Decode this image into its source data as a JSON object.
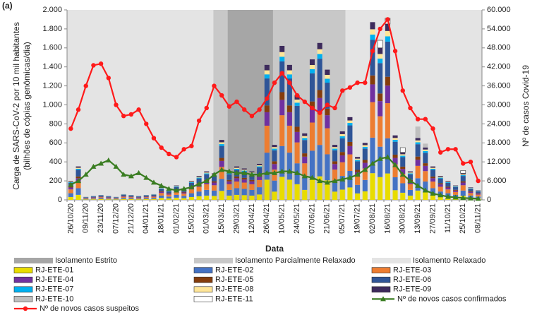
{
  "chart_data": {
    "type": "bar",
    "panel_label": "(a)",
    "ylabel": [
      "Carga de SARS-CoV-2 por 10 mil habitantes",
      "(bilhões de cópias genômicas/dia)"
    ],
    "y2label": "Nº de casos Covid-19",
    "xlabel": "Data",
    "categories": [
      "26/10/20",
      null,
      "09/11/20",
      null,
      "23/11/20",
      null,
      "07/12/20",
      null,
      "21/12/20",
      null,
      "04/01/21",
      null,
      "18/01/21",
      null,
      "01/02/21",
      null,
      "15/02/21",
      null,
      "01/03/21",
      null,
      "15/03/21",
      null,
      "29/03/21",
      null,
      "12/04/21",
      null,
      "26/04/21",
      null,
      "10/05/21",
      null,
      "24/05/21",
      null,
      "07/06/21",
      null,
      "21/06/21",
      null,
      "05/07/21",
      null,
      "19/07/21",
      null,
      "02/08/21",
      null,
      "16/08/21",
      null,
      "30/08/21",
      null,
      "13/09/21",
      null,
      "27/09/21",
      null,
      "11/10/21",
      null,
      "25/10/21",
      null,
      "08/11/21"
    ],
    "ylim": [
      0,
      2000
    ],
    "yticks": [
      0,
      200,
      400,
      600,
      800,
      {
        "value": 1000,
        "label": "1.000"
      },
      {
        "value": 1200,
        "label": "1.200"
      },
      {
        "value": 1400,
        "label": "1.400"
      },
      {
        "value": 1600,
        "label": "1.600"
      },
      {
        "value": 1800,
        "label": "1.800"
      },
      {
        "value": 2000,
        "label": "2.000"
      }
    ],
    "y2lim": [
      0,
      60000
    ],
    "y2ticks": [
      0,
      {
        "value": 6000,
        "label": "6.000"
      },
      {
        "value": 12000,
        "label": "12.000"
      },
      {
        "value": 18000,
        "label": "18.000"
      },
      {
        "value": 24000,
        "label": "24.000"
      },
      {
        "value": 30000,
        "label": "30.000"
      },
      {
        "value": 36000,
        "label": "36.000"
      },
      {
        "value": 42000,
        "label": "42.000"
      },
      {
        "value": 48000,
        "label": "48.000"
      },
      {
        "value": 54000,
        "label": "54.000"
      },
      {
        "value": 60000,
        "label": "60.000"
      }
    ],
    "bands": [
      {
        "name": "Isolamento Estrito",
        "color": "#a6a6a6",
        "x": [
          21.3,
          27.3
        ]
      },
      {
        "name": "Isolamento Parcialmente Relaxado",
        "color": "#c8c8c8",
        "x": [
          19.4,
          36.9
        ]
      },
      {
        "name": "Isolamento Relaxado",
        "color": "#e4e4e4",
        "x": [
          0,
          55
        ]
      }
    ],
    "series": [
      {
        "name": "RJ-ETE-01",
        "type": "bar",
        "color": "#e8dc00",
        "values": [
          30,
          53,
          5,
          6,
          8,
          6,
          5,
          9,
          8,
          6,
          8,
          9,
          20,
          15,
          23,
          18,
          30,
          38,
          45,
          42,
          95,
          45,
          53,
          50,
          45,
          57,
          213,
          87,
          243,
          213,
          165,
          105,
          222,
          248,
          206,
          87,
          108,
          131,
          68,
          90,
          281,
          240,
          278,
          102,
          75,
          45,
          98,
          83,
          53,
          38,
          30,
          23,
          42,
          20,
          15
        ]
      },
      {
        "name": "RJ-ETE-02",
        "type": "bar",
        "color": "#4472c4",
        "values": [
          40,
          70,
          6,
          8,
          10,
          8,
          6,
          12,
          10,
          8,
          10,
          12,
          26,
          20,
          30,
          24,
          40,
          50,
          60,
          56,
          126,
          60,
          70,
          66,
          60,
          76,
          284,
          116,
          324,
          284,
          220,
          140,
          296,
          330,
          274,
          116,
          144,
          174,
          90,
          120,
          374,
          320,
          370,
          136,
          100,
          60,
          130,
          110,
          70,
          50,
          40,
          30,
          56,
          26,
          20
        ]
      },
      {
        "name": "RJ-ETE-03",
        "type": "bar",
        "color": "#ed7d31",
        "values": [
          40,
          70,
          6,
          8,
          10,
          8,
          6,
          12,
          10,
          8,
          10,
          12,
          26,
          20,
          30,
          24,
          40,
          50,
          60,
          56,
          126,
          60,
          70,
          66,
          60,
          76,
          284,
          116,
          324,
          284,
          220,
          140,
          296,
          330,
          274,
          116,
          144,
          174,
          90,
          120,
          374,
          320,
          370,
          136,
          100,
          60,
          130,
          110,
          70,
          50,
          40,
          30,
          56,
          26,
          20
        ]
      },
      {
        "name": "RJ-ETE-04",
        "type": "bar",
        "color": "#7030a0",
        "values": [
          20,
          35,
          3,
          4,
          5,
          4,
          3,
          6,
          5,
          4,
          5,
          6,
          13,
          10,
          15,
          12,
          20,
          25,
          30,
          28,
          63,
          30,
          35,
          33,
          30,
          38,
          142,
          58,
          162,
          142,
          110,
          70,
          148,
          165,
          137,
          58,
          72,
          87,
          45,
          60,
          187,
          160,
          185,
          68,
          50,
          30,
          65,
          55,
          35,
          25,
          20,
          15,
          28,
          13,
          10
        ]
      },
      {
        "name": "RJ-ETE-05",
        "type": "bar",
        "color": "#843c0c",
        "values": [
          10,
          18,
          2,
          2,
          3,
          2,
          2,
          3,
          3,
          2,
          3,
          3,
          7,
          5,
          8,
          6,
          10,
          13,
          15,
          14,
          32,
          15,
          18,
          17,
          15,
          19,
          71,
          29,
          81,
          71,
          55,
          35,
          74,
          83,
          69,
          29,
          36,
          44,
          23,
          30,
          94,
          80,
          93,
          34,
          25,
          15,
          33,
          28,
          18,
          13,
          10,
          8,
          14,
          7,
          5
        ]
      },
      {
        "name": "RJ-ETE-06",
        "type": "bar",
        "color": "#2f5597",
        "values": [
          40,
          70,
          6,
          8,
          10,
          8,
          6,
          12,
          10,
          8,
          10,
          12,
          26,
          20,
          30,
          24,
          40,
          50,
          60,
          56,
          126,
          60,
          70,
          66,
          60,
          76,
          284,
          116,
          324,
          284,
          220,
          140,
          296,
          330,
          274,
          116,
          144,
          174,
          90,
          120,
          374,
          320,
          370,
          136,
          100,
          60,
          130,
          110,
          70,
          50,
          40,
          30,
          56,
          26,
          20
        ]
      },
      {
        "name": "RJ-ETE-07",
        "type": "bar",
        "color": "#00b0f0",
        "values": [
          6,
          11,
          1,
          1,
          2,
          1,
          1,
          2,
          2,
          1,
          2,
          2,
          4,
          3,
          5,
          4,
          6,
          8,
          9,
          8,
          19,
          9,
          11,
          10,
          9,
          11,
          43,
          17,
          49,
          43,
          33,
          21,
          44,
          50,
          41,
          17,
          22,
          26,
          14,
          18,
          56,
          48,
          56,
          20,
          15,
          9,
          20,
          17,
          11,
          8,
          6,
          5,
          8,
          4,
          3
        ]
      },
      {
        "name": "RJ-ETE-08",
        "type": "bar",
        "color": "#ffe699",
        "values": [
          6,
          11,
          1,
          1,
          2,
          1,
          1,
          2,
          2,
          1,
          2,
          2,
          4,
          3,
          5,
          4,
          6,
          8,
          9,
          8,
          19,
          9,
          11,
          10,
          9,
          11,
          43,
          17,
          49,
          43,
          33,
          21,
          44,
          50,
          41,
          17,
          22,
          26,
          14,
          18,
          56,
          48,
          56,
          20,
          15,
          9,
          20,
          17,
          11,
          8,
          6,
          5,
          8,
          4,
          3
        ]
      },
      {
        "name": "RJ-ETE-09",
        "type": "bar",
        "color": "#3d2b5c",
        "values": [
          8,
          14,
          1,
          2,
          2,
          2,
          1,
          2,
          2,
          2,
          2,
          2,
          5,
          4,
          6,
          5,
          8,
          10,
          12,
          11,
          25,
          12,
          14,
          13,
          12,
          15,
          57,
          23,
          65,
          57,
          44,
          28,
          59,
          66,
          55,
          23,
          29,
          35,
          18,
          24,
          75,
          64,
          74,
          27,
          20,
          12,
          26,
          22,
          14,
          10,
          8,
          6,
          11,
          5,
          4
        ]
      },
      {
        "name": "RJ-ETE-10",
        "type": "bar",
        "color": "#bfbfbf",
        "values": [
          0,
          0,
          0,
          0,
          0,
          0,
          0,
          0,
          0,
          0,
          0,
          0,
          0,
          0,
          0,
          0,
          0,
          0,
          0,
          0,
          0,
          0,
          0,
          0,
          0,
          0,
          0,
          0,
          0,
          0,
          0,
          0,
          0,
          0,
          0,
          0,
          0,
          0,
          0,
          0,
          0,
          0,
          0,
          0,
          0,
          0,
          120,
          40,
          0,
          0,
          0,
          0,
          0,
          0,
          0
        ]
      },
      {
        "name": "RJ-ETE-11",
        "type": "bar",
        "color": "#ffffff",
        "values": [
          0,
          0,
          0,
          0,
          0,
          0,
          0,
          0,
          0,
          0,
          0,
          0,
          0,
          0,
          0,
          0,
          0,
          0,
          0,
          0,
          0,
          0,
          0,
          0,
          0,
          0,
          0,
          0,
          0,
          0,
          0,
          0,
          0,
          0,
          0,
          0,
          0,
          0,
          0,
          0,
          0,
          80,
          60,
          0,
          50,
          0,
          0,
          0,
          0,
          0,
          0,
          0,
          30,
          0,
          0
        ]
      },
      {
        "name": "Nº de novos casos confirmados",
        "type": "line",
        "axis": "y2",
        "marker": "triangle",
        "color": "#3a7d22",
        "values": [
          4800,
          6000,
          8000,
          10500,
          11500,
          12500,
          10500,
          8000,
          7500,
          8500,
          7000,
          5500,
          4500,
          3500,
          3000,
          3500,
          4000,
          5000,
          6000,
          8000,
          9500,
          9000,
          8500,
          8500,
          8000,
          8000,
          8500,
          8500,
          9000,
          9000,
          8500,
          7500,
          7000,
          6000,
          5500,
          6000,
          6500,
          7000,
          8000,
          9500,
          11500,
          13000,
          13500,
          11000,
          8000,
          6000,
          4500,
          3000,
          2000,
          1500,
          1000,
          800,
          600,
          500,
          400
        ]
      },
      {
        "name": "Nº de novos casos suspeitos",
        "type": "line",
        "axis": "y2",
        "marker": "circle",
        "color": "#ff1a1a",
        "values": [
          22500,
          28500,
          36000,
          42500,
          43000,
          38500,
          30000,
          26500,
          27000,
          28500,
          24000,
          19500,
          16500,
          14500,
          13500,
          16000,
          17000,
          25000,
          29000,
          36000,
          33000,
          29500,
          31000,
          28500,
          26500,
          28500,
          32000,
          37000,
          40000,
          37000,
          33000,
          31000,
          29000,
          27500,
          30000,
          29000,
          34500,
          35500,
          37000,
          37000,
          47000,
          54000,
          57000,
          47000,
          34500,
          29000,
          25500,
          25500,
          22500,
          15000,
          16000,
          16000,
          11500,
          12000,
          6000
        ]
      }
    ]
  }
}
